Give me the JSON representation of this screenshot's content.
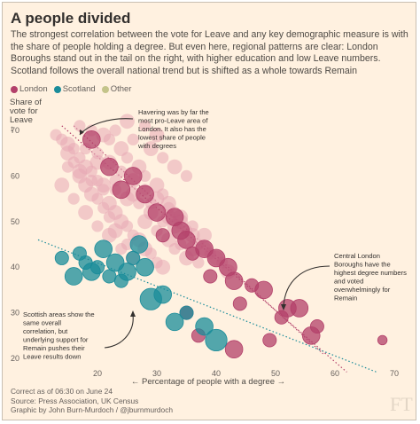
{
  "title": "A people divided",
  "subtitle": "The strongest correlation between the vote for Leave and any key demographic measure is with the share of people holding a degree. But even here, regional patterns are clear: London Boroughs stand out in the tail on the right, with higher education and low Leave numbers. Scotland follows the overall national trend but is shifted as a whole towards Remain",
  "legend": [
    {
      "label": "London",
      "color": "#b3406a"
    },
    {
      "label": "Scotland",
      "color": "#1a8c9a"
    },
    {
      "label": "Other",
      "color": "#c4c48a"
    }
  ],
  "footer": {
    "line1": "Correct as of 06:30 on June 24",
    "line2": "Source: Press Association, UK Census",
    "line3": "Graphic by John Burn-Murdoch / @jburnmurdoch"
  },
  "watermark": "FT",
  "colors": {
    "background": "#fff1e0",
    "london": "#b3406a",
    "scotland": "#1a8c9a",
    "other": "#e7a7b4",
    "trend_uk": "#b3406a",
    "trend_scotland": "#1a8c9a"
  },
  "chart_data": {
    "type": "scatter",
    "title": "A people divided",
    "xlabel": "← Percentage of people with a degree →",
    "ylabel": [
      "Share of",
      "vote for",
      "Leave",
      "↓"
    ],
    "xlim": [
      10,
      70
    ],
    "ylim": [
      20,
      75
    ],
    "xticks": [
      20,
      30,
      40,
      50,
      60,
      70
    ],
    "yticks": [
      20,
      30,
      40,
      50,
      60,
      70
    ],
    "grid": false,
    "legend_position": "top-left",
    "series": [
      {
        "name": "Other",
        "points": [
          [
            13,
            69
          ],
          [
            14,
            68
          ],
          [
            15,
            67
          ],
          [
            16,
            66
          ],
          [
            15,
            65
          ],
          [
            17,
            64
          ],
          [
            18,
            62
          ],
          [
            16,
            63
          ],
          [
            19,
            61
          ],
          [
            17,
            60
          ],
          [
            20,
            59
          ],
          [
            18,
            58
          ],
          [
            21,
            57
          ],
          [
            19,
            56
          ],
          [
            20,
            55
          ],
          [
            22,
            54
          ],
          [
            21,
            53
          ],
          [
            23,
            52
          ],
          [
            22,
            51
          ],
          [
            24,
            50
          ],
          [
            25,
            49
          ],
          [
            23,
            48
          ],
          [
            26,
            47
          ],
          [
            27,
            46
          ],
          [
            25,
            45
          ],
          [
            28,
            44
          ],
          [
            29,
            43
          ],
          [
            26,
            42
          ],
          [
            30,
            41
          ],
          [
            31,
            40
          ],
          [
            17,
            71
          ],
          [
            19,
            70
          ],
          [
            21,
            69
          ],
          [
            22,
            68
          ],
          [
            24,
            66
          ],
          [
            25,
            64
          ],
          [
            27,
            62
          ],
          [
            28,
            60
          ],
          [
            30,
            58
          ],
          [
            31,
            56
          ],
          [
            32,
            54
          ],
          [
            33,
            52
          ],
          [
            34,
            50
          ],
          [
            35,
            48
          ],
          [
            36,
            47
          ],
          [
            37,
            45
          ],
          [
            38,
            44
          ],
          [
            39,
            43
          ],
          [
            40,
            42
          ],
          [
            41,
            41
          ],
          [
            20,
            65
          ],
          [
            22,
            63
          ],
          [
            24,
            61
          ],
          [
            26,
            59
          ],
          [
            28,
            57
          ],
          [
            30,
            55
          ],
          [
            32,
            53
          ],
          [
            34,
            51
          ],
          [
            36,
            49
          ],
          [
            38,
            47
          ],
          [
            15,
            62
          ],
          [
            17,
            61
          ],
          [
            19,
            59
          ],
          [
            21,
            58
          ],
          [
            23,
            57
          ],
          [
            25,
            55
          ],
          [
            27,
            54
          ],
          [
            29,
            52
          ],
          [
            31,
            50
          ],
          [
            33,
            49
          ],
          [
            26,
            68
          ],
          [
            29,
            66
          ],
          [
            31,
            64
          ],
          [
            33,
            62
          ],
          [
            35,
            60
          ],
          [
            28,
            50
          ],
          [
            30,
            48
          ],
          [
            32,
            46
          ],
          [
            34,
            45
          ],
          [
            36,
            44
          ],
          [
            24,
            44
          ],
          [
            22,
            47
          ],
          [
            20,
            49
          ],
          [
            18,
            52
          ],
          [
            16,
            55
          ],
          [
            14,
            58
          ],
          [
            33,
            44
          ],
          [
            35,
            42
          ],
          [
            37,
            41
          ],
          [
            42,
            39
          ],
          [
            23,
            70
          ],
          [
            25,
            72
          ],
          [
            28,
            71
          ],
          [
            30,
            69
          ],
          [
            18,
            66
          ],
          [
            20,
            63
          ],
          [
            23,
            59
          ],
          [
            26,
            56
          ],
          [
            29,
            54
          ],
          [
            32,
            51
          ]
        ],
        "sizes": [
          2,
          2,
          3,
          2,
          3,
          2,
          3,
          2,
          2,
          3,
          2,
          3,
          2,
          3,
          2,
          3,
          2,
          3,
          2,
          3,
          2,
          3,
          2,
          3,
          2,
          3,
          2,
          3,
          2,
          3,
          2,
          2,
          3,
          2,
          3,
          2,
          3,
          2,
          3,
          2,
          3,
          2,
          3,
          2,
          3,
          2,
          3,
          2,
          3,
          2,
          2,
          3,
          2,
          3,
          2,
          3,
          2,
          3,
          2,
          3,
          2,
          3,
          2,
          3,
          2,
          3,
          2,
          3,
          2,
          3,
          2,
          3,
          2,
          3,
          2,
          3,
          2,
          3,
          2,
          3,
          2,
          3,
          2,
          3,
          2,
          3,
          2,
          3,
          2,
          3,
          2,
          3,
          2,
          3,
          2,
          3,
          2,
          3,
          2,
          3
        ]
      },
      {
        "name": "London",
        "points": [
          [
            19,
            68
          ],
          [
            22,
            62
          ],
          [
            26,
            60
          ],
          [
            24,
            57
          ],
          [
            28,
            56
          ],
          [
            30,
            52
          ],
          [
            33,
            51
          ],
          [
            34,
            48
          ],
          [
            31,
            47
          ],
          [
            35,
            46
          ],
          [
            38,
            44
          ],
          [
            36,
            43
          ],
          [
            40,
            42
          ],
          [
            42,
            40
          ],
          [
            39,
            38
          ],
          [
            43,
            37
          ],
          [
            46,
            36
          ],
          [
            48,
            35
          ],
          [
            52,
            31
          ],
          [
            54,
            31
          ],
          [
            51,
            29
          ],
          [
            56,
            25
          ],
          [
            49,
            24
          ],
          [
            43,
            22
          ],
          [
            57,
            27
          ],
          [
            37,
            25
          ],
          [
            35,
            30
          ],
          [
            44,
            32
          ],
          [
            68,
            24
          ]
        ],
        "sizes": [
          3,
          3,
          3,
          3,
          3,
          3,
          3,
          3,
          2,
          3,
          3,
          2,
          3,
          3,
          2,
          3,
          2,
          3,
          3,
          3,
          2,
          3,
          2,
          3,
          2,
          2,
          2,
          2,
          1
        ]
      },
      {
        "name": "Scotland",
        "points": [
          [
            14,
            42
          ],
          [
            16,
            38
          ],
          [
            17,
            43
          ],
          [
            18,
            41
          ],
          [
            19,
            39
          ],
          [
            20,
            40
          ],
          [
            21,
            44
          ],
          [
            22,
            38
          ],
          [
            23,
            41
          ],
          [
            24,
            37
          ],
          [
            25,
            39
          ],
          [
            26,
            42
          ],
          [
            27,
            45
          ],
          [
            28,
            40
          ],
          [
            29,
            33
          ],
          [
            31,
            34
          ],
          [
            33,
            28
          ],
          [
            35,
            30
          ],
          [
            38,
            27
          ],
          [
            40,
            24
          ]
        ],
        "sizes": [
          2,
          3,
          2,
          2,
          3,
          2,
          3,
          2,
          3,
          2,
          3,
          2,
          3,
          3,
          4,
          3,
          3,
          2,
          3,
          4
        ]
      }
    ],
    "trendlines": [
      {
        "name": "UK trend (upper)",
        "from": [
          14,
          71
        ],
        "to": [
          62,
          17
        ]
      },
      {
        "name": "UK trend (lower)",
        "from": [
          16,
          71
        ],
        "to": [
          58,
          21
        ]
      },
      {
        "name": "Scotland trend",
        "from": [
          10,
          46
        ],
        "to": [
          67,
          17
        ]
      }
    ],
    "annotations": [
      {
        "text": [
          "Havering was by far the",
          "most pro-Leave area of",
          "London. It also has the",
          "lowest share of people",
          "with degrees"
        ]
      },
      {
        "text": [
          "Central London",
          "Boroughs have the",
          "highest degree numbers",
          "and voted",
          "overwhelmingly for",
          "Remain"
        ]
      },
      {
        "text": [
          "Scottish areas show the",
          "same overall",
          "correlation, but",
          "underlying support for",
          "Remain pushes their",
          "Leave results down"
        ]
      }
    ]
  }
}
